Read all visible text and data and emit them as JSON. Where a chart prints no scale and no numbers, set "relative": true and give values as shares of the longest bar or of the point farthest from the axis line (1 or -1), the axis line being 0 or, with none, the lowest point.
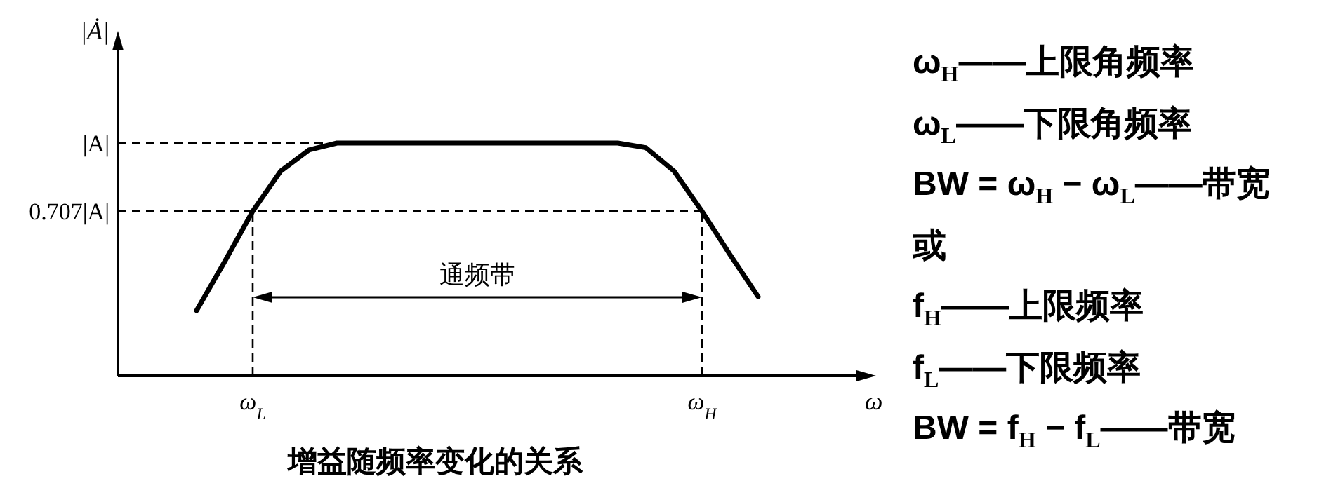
{
  "chart_data": {
    "type": "line",
    "title": "增益随频率变化的关系",
    "xlabel": "ω",
    "ylabel": "|Ȧ|",
    "relative": true,
    "categories": [
      null,
      null,
      "ω$_{L}$",
      null,
      null,
      null,
      null,
      null,
      null,
      null,
      null,
      null,
      null,
      null,
      null,
      null,
      null,
      null,
      "ω$_{H}$",
      null,
      null
    ],
    "series": [
      {
        "color": "#000000",
        "values": [
          0.28,
          0.49,
          0.707,
          0.88,
          0.97,
          1.0,
          1.0,
          1.0,
          1.0,
          1.0,
          1.0,
          1.0,
          1.0,
          1.0,
          1.0,
          1.0,
          0.98,
          0.88,
          0.707,
          0.52,
          0.34
        ]
      }
    ],
    "ref_lines": [
      {
        "axis": "y",
        "value": 1,
        "label": "|A|",
        "line_style": "dashed"
      },
      {
        "axis": "y",
        "value": 0.707,
        "label": "0.707|A|",
        "line_style": "dashed"
      },
      {
        "axis": "x",
        "value": "ω$_{L}$",
        "line_style": "dashed"
      },
      {
        "axis": "x",
        "value": "ω$_{H}$",
        "line_style": "dashed"
      }
    ],
    "annotations": [
      "通频带",
      "ω$_{H}$——上限角频率",
      "ω$_{L}$——下限角频率",
      "BW = ω$_{H}$ − ω$_{L}$——带宽",
      "或",
      "f$_{H}$——上限频率",
      "f$_{L}$——下限频率",
      "BW = f$_{H}$ − f$_{L}$——带宽"
    ],
    "line_style": "solid",
    "marker": "none"
  }
}
